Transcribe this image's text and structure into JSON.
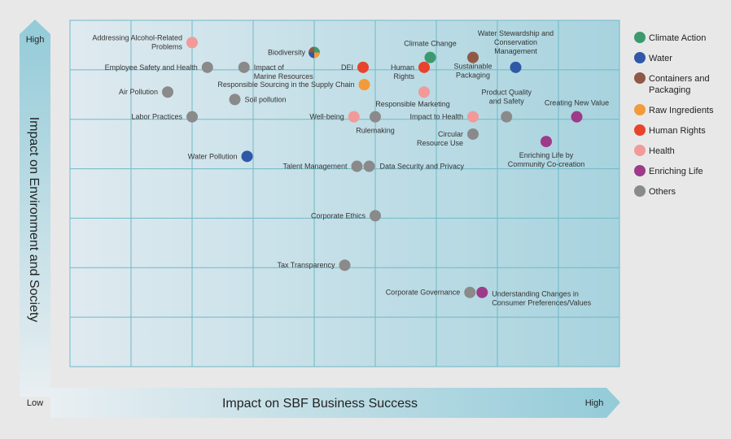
{
  "chart_data": {
    "type": "scatter",
    "xlabel": "Impact on SBF Business Success",
    "ylabel": "Impact on Environment and Society",
    "x_low": "Low",
    "x_high": "High",
    "y_high": "High",
    "xlim": [
      0,
      9
    ],
    "ylim": [
      0,
      7
    ],
    "grid": true,
    "legend_position": "right",
    "categories": [
      {
        "name": "Climate Action",
        "color": "#3d9a6e"
      },
      {
        "name": "Water",
        "color": "#2f58a6"
      },
      {
        "name": "Containers and Packaging",
        "color": "#8f5a45"
      },
      {
        "name": "Raw Ingredients",
        "color": "#f29b3a"
      },
      {
        "name": "Human Rights",
        "color": "#e8432c"
      },
      {
        "name": "Health",
        "color": "#f2999a"
      },
      {
        "name": "Enriching Life",
        "color": "#9e3a8a"
      },
      {
        "name": "Others",
        "color": "#8a8a8a"
      }
    ],
    "points": [
      {
        "label": "Addressing Alcohol-Related Problems",
        "x": 2.0,
        "y": 6.55,
        "category": "Health"
      },
      {
        "label": "Biodiversity",
        "x": 4.0,
        "y": 6.35,
        "category": "Multiple"
      },
      {
        "label": "Climate Change",
        "x": 5.9,
        "y": 6.25,
        "category": "Climate Action"
      },
      {
        "label": "Water Stewardship and Conservation Management",
        "x": 7.3,
        "y": 6.05,
        "category": "Water"
      },
      {
        "label": "Sustainable Packaging",
        "x": 6.6,
        "y": 6.25,
        "category": "Containers and Packaging"
      },
      {
        "label": "Employee Safety and Health",
        "x": 2.25,
        "y": 6.05,
        "category": "Others"
      },
      {
        "label": "Impact of Marine Resources",
        "x": 2.85,
        "y": 6.05,
        "category": "Others"
      },
      {
        "label": "DEI",
        "x": 4.8,
        "y": 6.05,
        "category": "Human Rights"
      },
      {
        "label": "Human Rights",
        "x": 5.8,
        "y": 6.05,
        "category": "Human Rights"
      },
      {
        "label": "Responsible Sourcing in the Supply Chain",
        "x": 4.82,
        "y": 5.7,
        "category": "Raw Ingredients"
      },
      {
        "label": "Air Pollution",
        "x": 1.6,
        "y": 5.55,
        "category": "Others"
      },
      {
        "label": "Soil pollution",
        "x": 2.7,
        "y": 5.4,
        "category": "Others"
      },
      {
        "label": "Responsible Marketing",
        "x": 5.8,
        "y": 5.55,
        "category": "Health"
      },
      {
        "label": "Labor Practices",
        "x": 2.0,
        "y": 5.05,
        "category": "Others"
      },
      {
        "label": "Well-being",
        "x": 4.65,
        "y": 5.05,
        "category": "Health"
      },
      {
        "label": "Rulemaking",
        "x": 5.0,
        "y": 5.05,
        "category": "Others"
      },
      {
        "label": "Impact to Health",
        "x": 6.6,
        "y": 5.05,
        "category": "Health"
      },
      {
        "label": "Product Quality and Safety",
        "x": 7.15,
        "y": 5.05,
        "category": "Others"
      },
      {
        "label": "Creating New Value",
        "x": 8.3,
        "y": 5.05,
        "category": "Enriching Life"
      },
      {
        "label": "Circular Resource Use",
        "x": 6.6,
        "y": 4.7,
        "category": "Others"
      },
      {
        "label": "Enriching Life by Community Co-creation",
        "x": 7.8,
        "y": 4.55,
        "category": "Enriching Life"
      },
      {
        "label": "Water Pollution",
        "x": 2.9,
        "y": 4.25,
        "category": "Water"
      },
      {
        "label": "Talent Management",
        "x": 4.7,
        "y": 4.05,
        "category": "Others"
      },
      {
        "label": "Data Security and Privacy",
        "x": 4.9,
        "y": 4.05,
        "category": "Others"
      },
      {
        "label": "Corporate Ethics",
        "x": 5.0,
        "y": 3.05,
        "category": "Others"
      },
      {
        "label": "Tax Transparency",
        "x": 4.5,
        "y": 2.05,
        "category": "Others"
      },
      {
        "label": "Corporate Governance",
        "x": 6.55,
        "y": 1.5,
        "category": "Others"
      },
      {
        "label": "Understanding Changes in Consumer Preferences/Values",
        "x": 6.75,
        "y": 1.5,
        "category": "Enriching Life"
      }
    ]
  }
}
